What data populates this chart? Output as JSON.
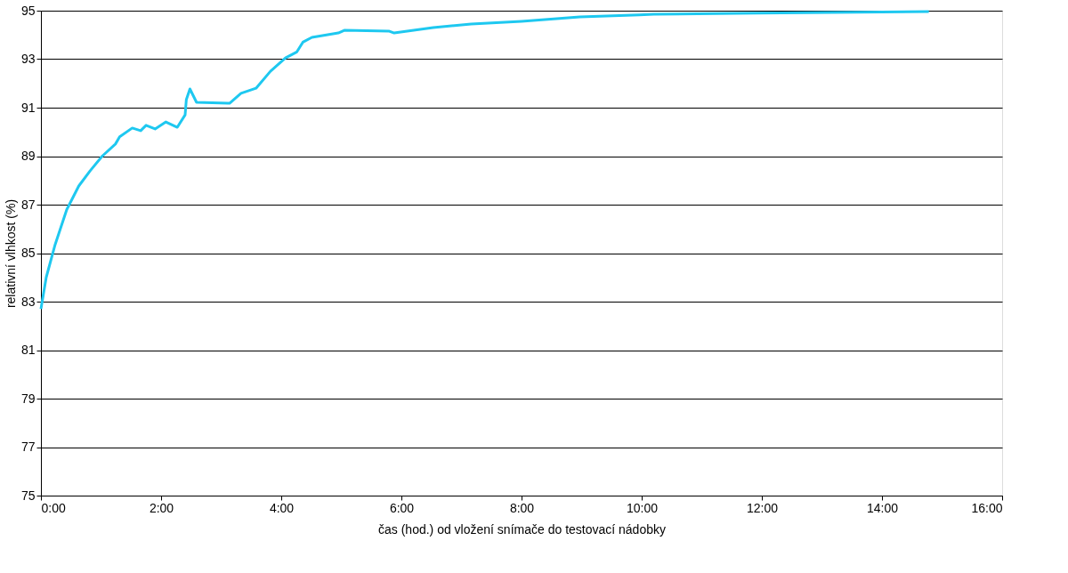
{
  "chart_data": {
    "type": "line",
    "xlabel": "čas (hod.) od vložení snímače do testovací nádobky",
    "ylabel": "relativní vlhkost (%)",
    "x": [
      0,
      0.088,
      0.236,
      0.43,
      0.63,
      0.82,
      1.02,
      1.24,
      1.31,
      1.52,
      1.66,
      1.75,
      1.9,
      2.08,
      2.27,
      2.4,
      2.42,
      2.48,
      2.59,
      3.14,
      3.33,
      3.58,
      3.82,
      4.07,
      4.26,
      4.36,
      4.51,
      4.95,
      5.05,
      5.79,
      5.88,
      6.53,
      7.16,
      8.0,
      8.97,
      9.96,
      10.2,
      11.92,
      14.78
    ],
    "series": [
      {
        "color": "#1ec8f0",
        "values": [
          82.7,
          84.0,
          85.35,
          86.8,
          87.77,
          88.4,
          89.0,
          89.5,
          89.8,
          90.16,
          90.05,
          90.27,
          90.12,
          90.41,
          90.19,
          90.7,
          91.33,
          91.77,
          91.22,
          91.18,
          91.59,
          91.8,
          92.5,
          93.05,
          93.3,
          93.7,
          93.9,
          94.08,
          94.19,
          94.16,
          94.08,
          94.3,
          94.45,
          94.56,
          94.74,
          94.83,
          94.85,
          94.9,
          94.96
        ]
      }
    ],
    "xlim": [
      0,
      16
    ],
    "xticks": [
      {
        "value": 0,
        "label": "0:00"
      },
      {
        "value": 2,
        "label": "2:00"
      },
      {
        "value": 4,
        "label": "4:00"
      },
      {
        "value": 6,
        "label": "6:00"
      },
      {
        "value": 8,
        "label": "8:00"
      },
      {
        "value": 10,
        "label": "10:00"
      },
      {
        "value": 12,
        "label": "12:00"
      },
      {
        "value": 14,
        "label": "14:00"
      },
      {
        "value": 16,
        "label": "16:00"
      }
    ],
    "ylim": [
      75,
      95
    ],
    "yticks": [
      75,
      77,
      79,
      81,
      83,
      85,
      87,
      89,
      91,
      93,
      95
    ],
    "grid": "y",
    "legend": false,
    "marker": "none",
    "line_style": "solid"
  }
}
